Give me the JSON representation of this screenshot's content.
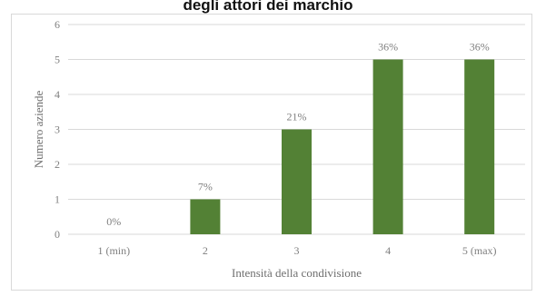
{
  "page": {
    "title": "degli attori dei marchio"
  },
  "chart_data": {
    "type": "bar",
    "title": "",
    "xlabel": "Intensità della condivisione",
    "ylabel": "Numero aziende",
    "categories": [
      "1 (min)",
      "2",
      "3",
      "4",
      "5 (max)"
    ],
    "values": [
      0,
      1,
      3,
      5,
      5
    ],
    "data_labels": [
      "0%",
      "7%",
      "21%",
      "36%",
      "36%"
    ],
    "ylim": [
      0,
      6
    ],
    "yticks": [
      "0",
      "1",
      "2",
      "3",
      "4",
      "5",
      "6"
    ],
    "grid": true,
    "legend": "none",
    "bar_color": "#538135",
    "grid_color": "#d9d9d9"
  }
}
